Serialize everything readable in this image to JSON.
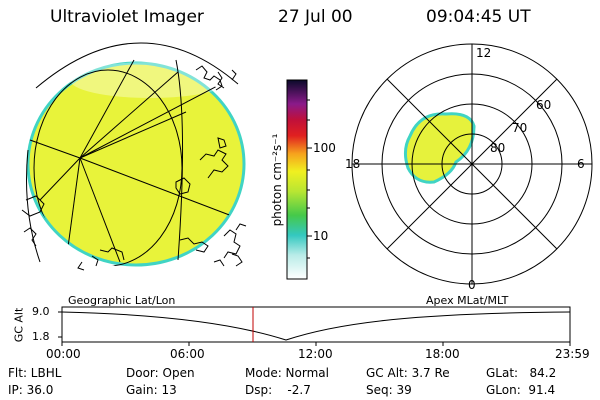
{
  "header": {
    "instrument": "Ultraviolet Imager",
    "date": "27 Jul 00",
    "time": "09:04:45 UT"
  },
  "colorbar": {
    "label": "photon cm⁻²s⁻¹",
    "ticks": [
      "100",
      "10"
    ]
  },
  "polar_plot": {
    "mlt_labels": [
      "12",
      "18",
      "6",
      "0"
    ],
    "lat_labels": [
      "60",
      "70",
      "80"
    ]
  },
  "timeline": {
    "left_title": "Geographic Lat/Lon",
    "right_title": "Apex MLat/MLT",
    "axis_label": "GC Alt",
    "y_ticks": [
      "9.0",
      "1.8"
    ],
    "x_ticks": [
      "00:00",
      "06:00",
      "12:00",
      "18:00",
      "23:59"
    ]
  },
  "status": {
    "filter": "Flt: LBHL",
    "ip": "IP: 36.0",
    "door": "Door: Open",
    "gain": "Gain: 13",
    "mode": "Mode: Normal",
    "dsp": "Dsp:    -2.7",
    "gc_alt": "GC Alt: 3.7 Re",
    "seq": "Seq: 39",
    "glat": "GLat:   84.2",
    "glon": "GLon:  91.4"
  },
  "colors": {
    "image_fill": "#e6f23c",
    "image_edge": "#42d7c8",
    "marker_line": "#c00000"
  }
}
